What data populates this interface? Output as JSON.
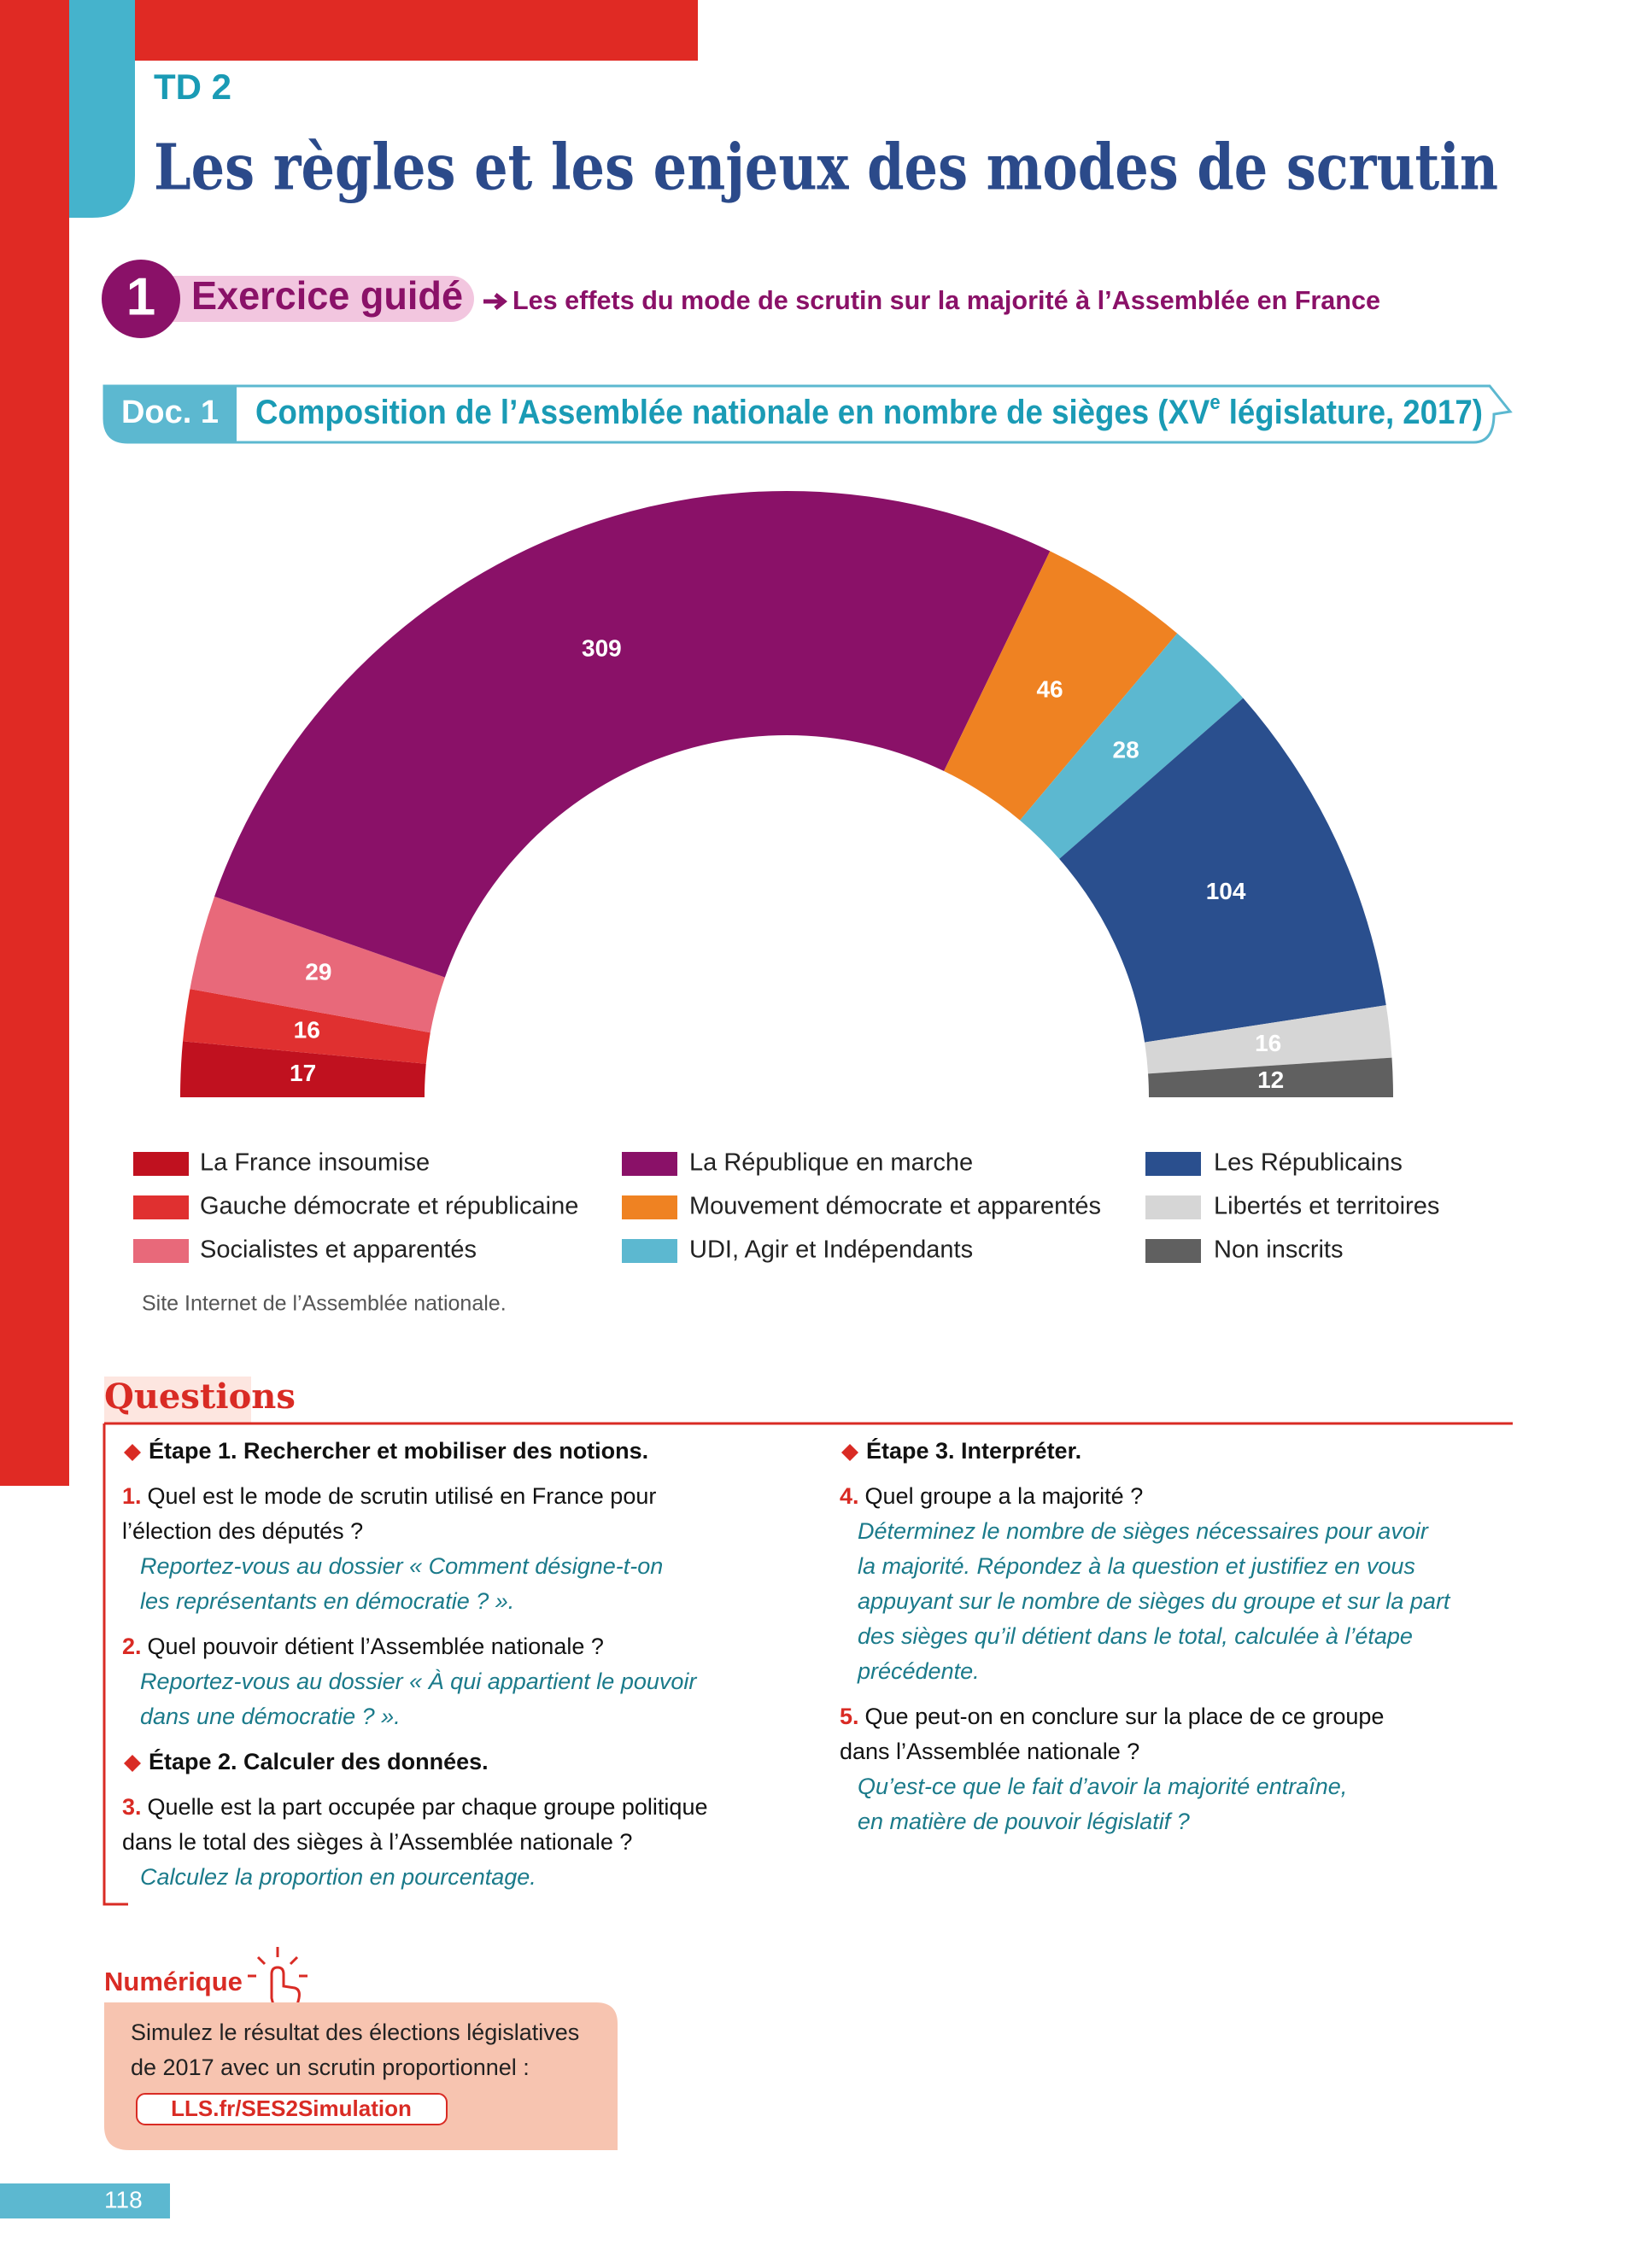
{
  "header": {
    "tag": "TD 2",
    "title": "Les règles et les enjeux des modes de scrutin"
  },
  "exercise": {
    "number": "1",
    "title": "Exercice guidé",
    "subtitle": "Les effets du mode de scrutin sur la majorité à l’Assemblée en France"
  },
  "doc": {
    "label": "Doc. 1",
    "title": "Composition de l’Assemblée nationale en nombre de sièges (XV",
    "title_sup": "e",
    "title_end": " législature, 2017)"
  },
  "chart_data": {
    "type": "hemicycle",
    "categories": [
      "La France insoumise",
      "Gauche démocrate et républicaine",
      "Socialistes et apparentés",
      "La République en marche",
      "Mouvement démocrate et apparentés",
      "UDI, Agir et Indépendants",
      "Les Républicains",
      "Libertés et territoires",
      "Non inscrits"
    ],
    "values": [
      17,
      16,
      29,
      309,
      46,
      28,
      104,
      16,
      12
    ],
    "colors": [
      "#c0111f",
      "#e03030",
      "#e8697a",
      "#8a1168",
      "#ef8222",
      "#5cb8d0",
      "#2a4f8e",
      "#d6d6d6",
      "#606060"
    ],
    "source": "Site Internet de l’Assemblée nationale."
  },
  "questions": {
    "title": "Questions",
    "columns": [
      [
        {
          "label": "Étape 1. Rechercher et mobiliser des notions.",
          "items": [
            {
              "number": "1.",
              "lines": [
                "Quel est le mode de scrutin utilisé en France pour",
                "l’élection des députés ?"
              ],
              "hint": [
                "Reportez-vous au dossier « Comment désigne-t-on",
                "les représentants en démocratie ? »."
              ]
            },
            {
              "number": "2.",
              "lines": [
                "Quel pouvoir détient l’Assemblée nationale ?"
              ],
              "hint": [
                "Reportez-vous au dossier « À qui appartient le pouvoir",
                "dans une démocratie ? »."
              ]
            }
          ]
        },
        {
          "label": "Étape 2. Calculer des données.",
          "items": [
            {
              "number": "3.",
              "lines": [
                "Quelle est la part occupée par chaque groupe politique",
                "dans le total des sièges à l’Assemblée nationale ?"
              ],
              "hint": [
                "Calculez la proportion en pourcentage."
              ]
            }
          ]
        }
      ],
      [
        {
          "label": "Étape 3. Interpréter.",
          "items": [
            {
              "number": "4.",
              "lines": [
                "Quel groupe a la majorité ?"
              ],
              "hint": [
                "Déterminez le nombre de sièges nécessaires pour avoir",
                "la majorité. Répondez à la question et justifiez en vous",
                "appuyant sur le nombre de sièges du groupe et sur la part",
                "des sièges qu’il détient dans le total, calculée à l’étape",
                "précédente."
              ]
            },
            {
              "number": "5.",
              "lines": [
                "Que peut-on en conclure sur la place de ce groupe",
                "dans l’Assemblée nationale ?"
              ],
              "hint": [
                "Qu’est-ce que le fait d’avoir la majorité entraîne,",
                "en matière de pouvoir législatif ?"
              ]
            }
          ]
        }
      ]
    ]
  },
  "digital": {
    "title": "Numérique",
    "lines": [
      "Simulez le résultat des élections législatives",
      "de 2017 avec un scrutin proportionnel :"
    ],
    "link": "LLS.fr/SES2Simulation"
  },
  "page_number": "118"
}
